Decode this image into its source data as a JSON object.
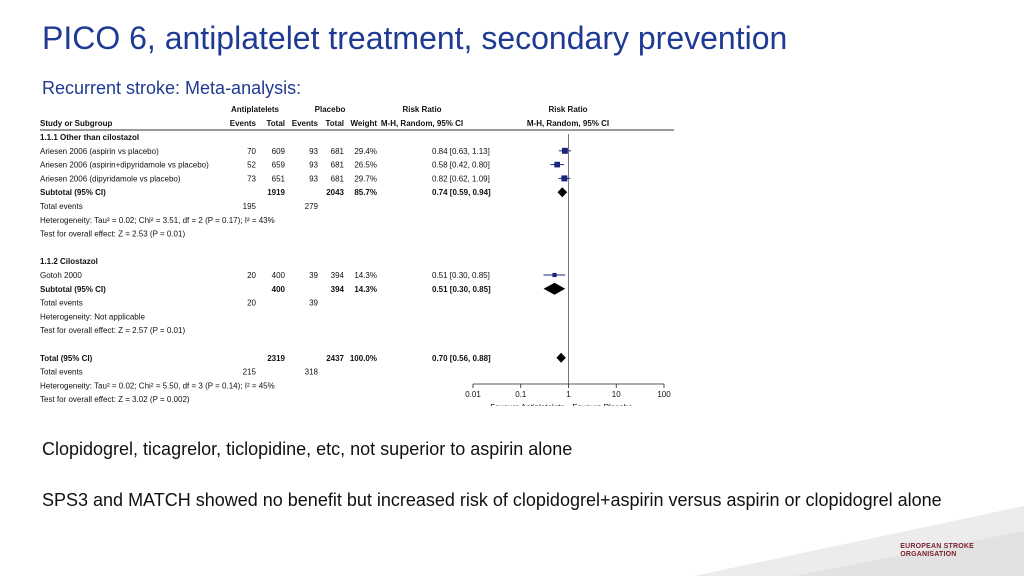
{
  "slide": {
    "title": "PICO 6, antiplatelet treatment, secondary prevention",
    "subtitle": "Recurrent stroke: Meta-analysis:",
    "text1": "Clopidogrel, ticagrelor, ticlopidine, etc, not superior to aspirin alone",
    "text2": "SPS3 and MATCH showed no benefit but increased risk of clopidogrel+aspirin versus aspirin or clopidogrel alone",
    "logo_line1": "EUROPEAN STROKE",
    "logo_line2": "ORGANISATION"
  },
  "colors": {
    "title": "#1f3a93",
    "marker": "#1a237e",
    "accent_logo": "#7a1f2b"
  },
  "chart_data": {
    "type": "forest",
    "headers": {
      "group_antiplatelets": "Antiplatelets",
      "group_placebo": "Placebo",
      "group_rr_text": "Risk Ratio",
      "group_rr_plot": "Risk Ratio",
      "study": "Study or Subgroup",
      "events1": "Events",
      "total1": "Total",
      "events2": "Events",
      "total2": "Total",
      "weight": "Weight",
      "method_text": "M-H, Random, 95% CI",
      "method_plot": "M-H, Random, 95% CI"
    },
    "x_axis": {
      "scale": "log",
      "ticks": [
        0.01,
        0.1,
        1,
        10,
        100
      ],
      "tick_labels": [
        "0.01",
        "0.1",
        "1",
        "10",
        "100"
      ],
      "label_left": "Favours Antiplatelets",
      "label_right": "Favours Placebo"
    },
    "rows": [
      {
        "kind": "header",
        "label": "1.1.1 Other than cilostazol"
      },
      {
        "kind": "study",
        "label": "Ariesen 2006 (aspirin vs placebo)",
        "e1": "70",
        "t1": "609",
        "e2": "93",
        "t2": "681",
        "w": "29.4%",
        "ci": "0.84 [0.63, 1.13]",
        "rr": 0.84,
        "lo": 0.63,
        "hi": 1.13
      },
      {
        "kind": "study",
        "label": "Ariesen 2006 (aspirin+dipyridamole vs placebo)",
        "e1": "52",
        "t1": "659",
        "e2": "93",
        "t2": "681",
        "w": "26.5%",
        "ci": "0.58 [0.42, 0.80]",
        "rr": 0.58,
        "lo": 0.42,
        "hi": 0.8
      },
      {
        "kind": "study",
        "label": "Ariesen 2006 (dipyridamole vs placebo)",
        "e1": "73",
        "t1": "651",
        "e2": "93",
        "t2": "681",
        "w": "29.7%",
        "ci": "0.82 [0.62, 1.09]",
        "rr": 0.82,
        "lo": 0.62,
        "hi": 1.09
      },
      {
        "kind": "subtotal",
        "label": "Subtotal (95% CI)",
        "t1": "1919",
        "t2": "2043",
        "w": "85.7%",
        "ci": "0.74 [0.59, 0.94]",
        "rr": 0.74,
        "lo": 0.59,
        "hi": 0.94
      },
      {
        "kind": "text",
        "label": "Total events",
        "e1": "195",
        "e2": "279"
      },
      {
        "kind": "text",
        "label": "Heterogeneity: Tau² = 0.02; Chi² = 3.51, df = 2 (P = 0.17); I² = 43%"
      },
      {
        "kind": "text",
        "label": "Test for overall effect: Z = 2.53 (P = 0.01)"
      },
      {
        "kind": "blank"
      },
      {
        "kind": "header",
        "label": "1.1.2 Cilostazol"
      },
      {
        "kind": "study",
        "label": "Gotoh 2000",
        "e1": "20",
        "t1": "400",
        "e2": "39",
        "t2": "394",
        "w": "14.3%",
        "ci": "0.51 [0.30, 0.85]",
        "rr": 0.51,
        "lo": 0.3,
        "hi": 0.85
      },
      {
        "kind": "subtotal",
        "label": "Subtotal (95% CI)",
        "t1": "400",
        "t2": "394",
        "w": "14.3%",
        "ci": "0.51 [0.30, 0.85]",
        "rr": 0.51,
        "lo": 0.3,
        "hi": 0.85
      },
      {
        "kind": "text",
        "label": "Total events",
        "e1": "20",
        "e2": "39"
      },
      {
        "kind": "text",
        "label": "Heterogeneity: Not applicable"
      },
      {
        "kind": "text",
        "label": "Test for overall effect: Z = 2.57 (P = 0.01)"
      },
      {
        "kind": "blank"
      },
      {
        "kind": "total",
        "label": "Total (95% CI)",
        "t1": "2319",
        "t2": "2437",
        "w": "100.0%",
        "ci": "0.70 [0.56, 0.88]",
        "rr": 0.7,
        "lo": 0.56,
        "hi": 0.88
      },
      {
        "kind": "text",
        "label": "Total events",
        "e1": "215",
        "e2": "318"
      },
      {
        "kind": "text",
        "label": "Heterogeneity: Tau² = 0.02; Chi² = 5.50, df = 3 (P = 0.14); I² = 45%"
      },
      {
        "kind": "text",
        "label": "Test for overall effect: Z = 3.02 (P = 0.002)"
      }
    ]
  }
}
